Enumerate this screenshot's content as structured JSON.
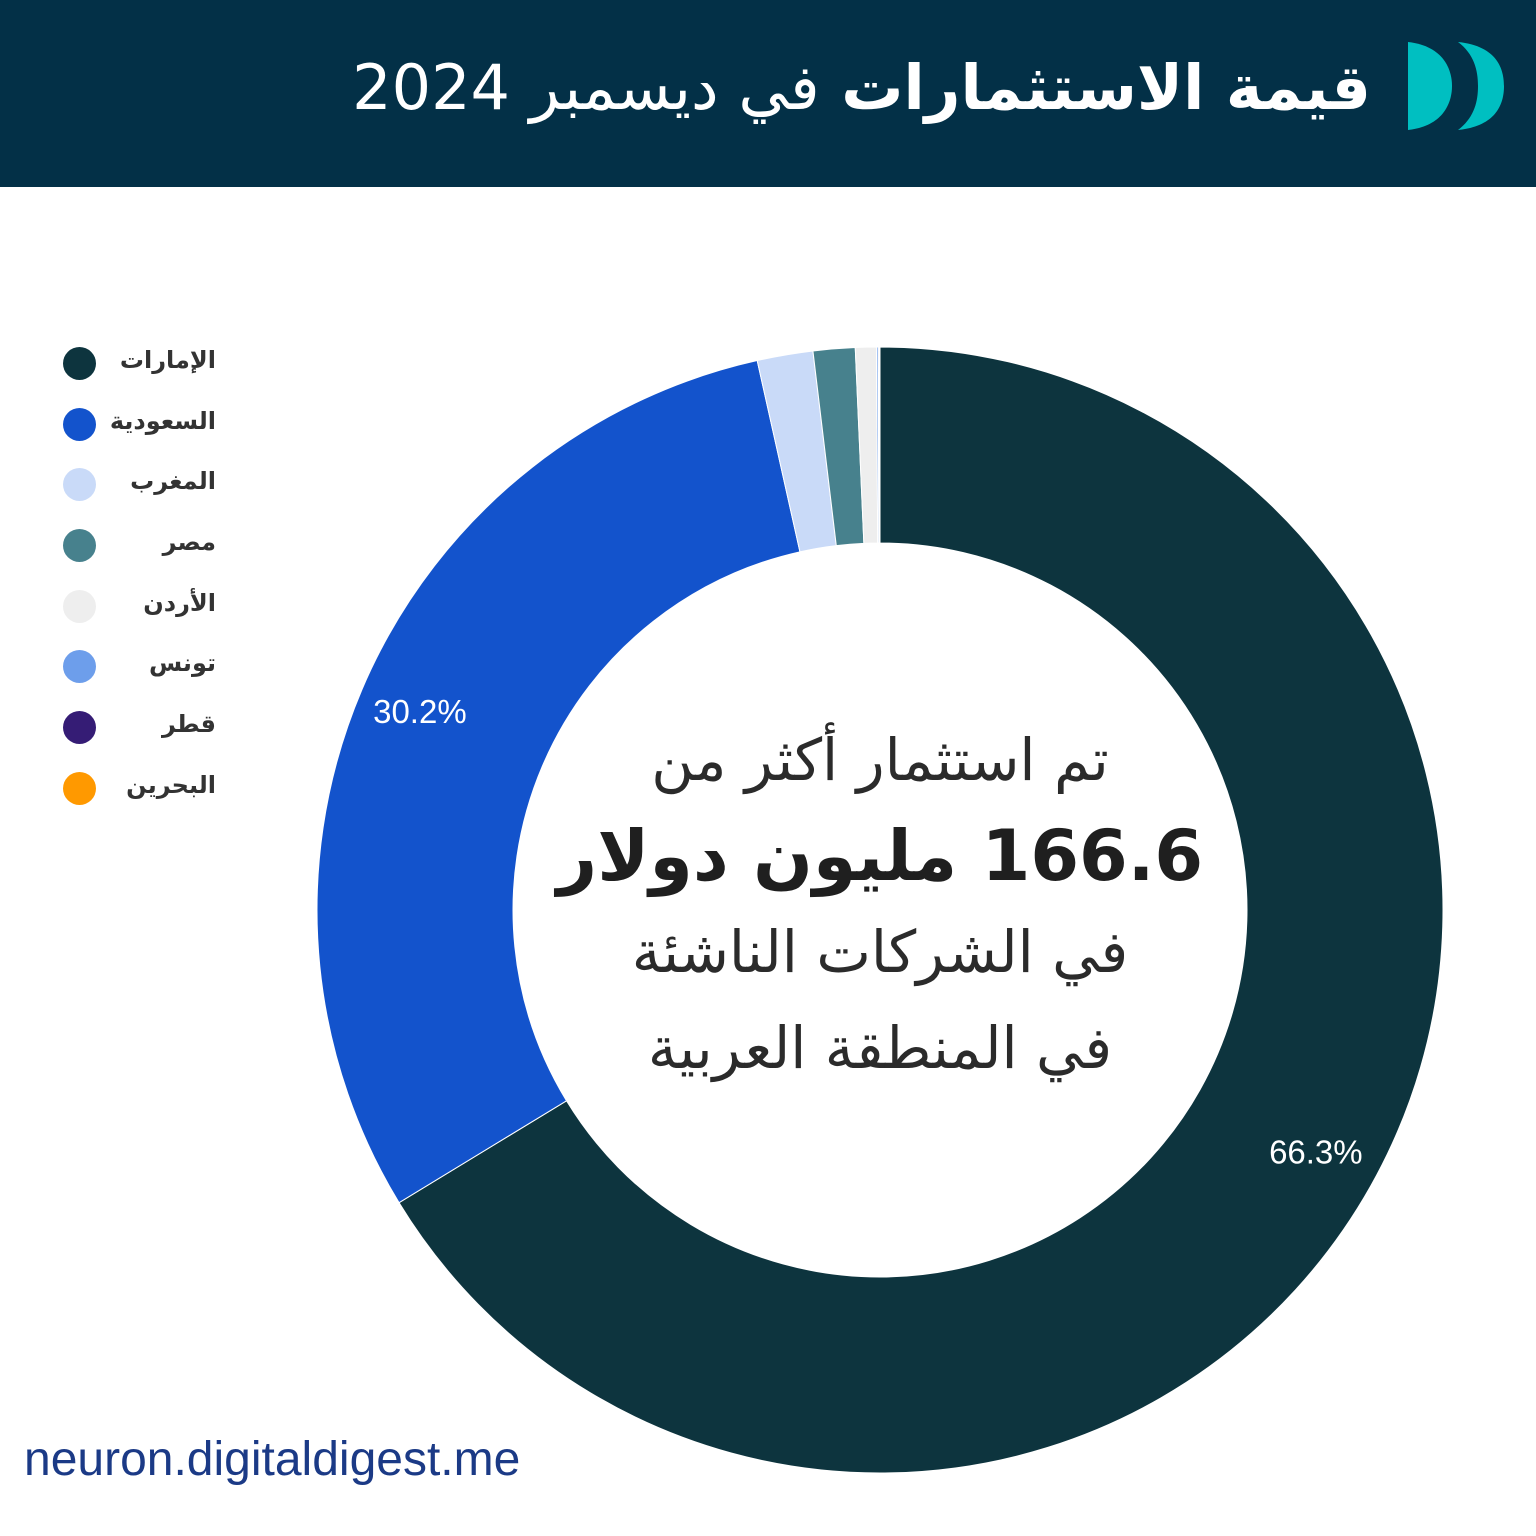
{
  "header": {
    "title_bold": "قيمة الاستثمارات",
    "title_light": "في ديسمبر 2024",
    "logo_icon": "double-chevron-logo-icon",
    "background": "#033047",
    "logo_color": "#00BFC1"
  },
  "center": {
    "line1": "تم استثمار أكثر من",
    "line2": "166.6 مليون دولار",
    "line3": "في الشركات الناشئة",
    "line4": "في المنطقة العربية"
  },
  "footer": {
    "url": "neuron.digitaldigest.me"
  },
  "chart_data": {
    "type": "pie",
    "donut": true,
    "title": "",
    "legend_position": "left",
    "categories": [
      "الإمارات",
      "السعودية",
      "المغرب",
      "مصر",
      "الأردن",
      "تونس",
      "قطر",
      "البحرين"
    ],
    "values": [
      66.3,
      30.2,
      1.6,
      1.2,
      0.6,
      0.05,
      0.03,
      0.02
    ],
    "colors": [
      "#0D343E",
      "#1353CC",
      "#C9DAF8",
      "#47818D",
      "#EEEEEE",
      "#6D9EEB",
      "#351C75",
      "#FF9900"
    ],
    "labels": [
      "66.3%",
      "30.2%",
      "",
      "",
      "",
      "",
      "",
      ""
    ]
  }
}
